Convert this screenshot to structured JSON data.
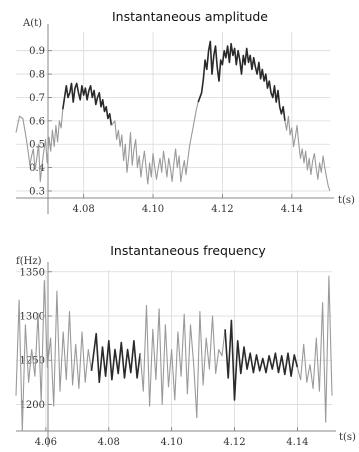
{
  "chart_data": [
    {
      "type": "line",
      "title": "Instantaneous amplitude",
      "ylabel": "A(t)",
      "xlabel": "t(s)",
      "xlim": [
        4.0605,
        4.151
      ],
      "ylim": [
        0.27,
        0.98
      ],
      "x_ticks": [
        4.08,
        4.1,
        4.12,
        4.14
      ],
      "x_tick_labels": [
        "4.08",
        "4.10",
        "4.12",
        "4.14"
      ],
      "y_ticks": [
        0.3,
        0.4,
        0.5,
        0.6,
        0.7,
        0.8,
        0.9
      ],
      "y_tick_labels": [
        "0.3",
        "0.4",
        "0.5",
        "0.6",
        "0.7",
        "0.8",
        "0.9"
      ],
      "grid": true,
      "series": [
        {
          "style": "light",
          "x": [
            4.0605,
            4.0615,
            4.0625,
            4.0635,
            4.064,
            4.0645,
            4.065,
            4.0655,
            4.066,
            4.0665,
            4.067,
            4.0675,
            4.068,
            4.0685,
            4.069,
            4.0695,
            4.07,
            4.0705,
            4.071,
            4.0715,
            4.072,
            4.0725,
            4.073,
            4.0735,
            4.074
          ],
          "y": [
            0.55,
            0.62,
            0.61,
            0.52,
            0.47,
            0.41,
            0.45,
            0.48,
            0.39,
            0.44,
            0.5,
            0.34,
            0.41,
            0.47,
            0.52,
            0.42,
            0.53,
            0.47,
            0.56,
            0.49,
            0.58,
            0.51,
            0.6,
            0.57,
            0.65
          ]
        },
        {
          "style": "dark",
          "x": [
            4.074,
            4.075,
            4.0755,
            4.076,
            4.0765,
            4.077,
            4.0775,
            4.078,
            4.0785,
            4.079,
            4.0795,
            4.08,
            4.0805,
            4.081,
            4.0815,
            4.082,
            4.0825,
            4.083,
            4.0835,
            4.084,
            4.0845,
            4.085,
            4.0855,
            4.086,
            4.0865,
            4.087,
            4.0875,
            4.088
          ],
          "y": [
            0.65,
            0.75,
            0.7,
            0.72,
            0.76,
            0.68,
            0.74,
            0.76,
            0.72,
            0.69,
            0.75,
            0.71,
            0.74,
            0.69,
            0.73,
            0.75,
            0.7,
            0.73,
            0.67,
            0.7,
            0.72,
            0.66,
            0.69,
            0.64,
            0.66,
            0.61,
            0.63,
            0.58
          ]
        },
        {
          "style": "light",
          "x": [
            4.088,
            4.089,
            4.0895,
            4.09,
            4.0905,
            4.091,
            4.0915,
            4.092,
            4.0925,
            4.093,
            4.0935,
            4.094,
            4.0945,
            4.095,
            4.0955,
            4.096,
            4.0965,
            4.097,
            4.0975,
            4.098,
            4.0985,
            4.099,
            4.0995,
            4.1,
            4.1005,
            4.101,
            4.1015,
            4.102,
            4.1025,
            4.103,
            4.1035,
            4.104,
            4.1045,
            4.105,
            4.1055,
            4.106,
            4.1065,
            4.107,
            4.1075,
            4.108,
            4.1085,
            4.109,
            4.1095,
            4.11,
            4.1105,
            4.111,
            4.1115,
            4.112,
            4.1125,
            4.113
          ],
          "y": [
            0.58,
            0.6,
            0.52,
            0.56,
            0.49,
            0.54,
            0.43,
            0.5,
            0.38,
            0.45,
            0.55,
            0.41,
            0.48,
            0.52,
            0.4,
            0.45,
            0.36,
            0.42,
            0.47,
            0.4,
            0.33,
            0.42,
            0.36,
            0.46,
            0.4,
            0.35,
            0.4,
            0.44,
            0.38,
            0.47,
            0.42,
            0.36,
            0.44,
            0.4,
            0.34,
            0.42,
            0.48,
            0.4,
            0.45,
            0.34,
            0.39,
            0.43,
            0.37,
            0.43,
            0.49,
            0.53,
            0.57,
            0.61,
            0.65,
            0.68
          ]
        },
        {
          "style": "dark",
          "x": [
            4.113,
            4.114,
            4.1145,
            4.115,
            4.1155,
            4.116,
            4.1165,
            4.117,
            4.1175,
            4.118,
            4.1185,
            4.119,
            4.1195,
            4.12,
            4.1205,
            4.121,
            4.1215,
            4.122,
            4.1225,
            4.123,
            4.1235,
            4.124,
            4.1245,
            4.125,
            4.1255,
            4.126,
            4.1265,
            4.127,
            4.1275,
            4.128,
            4.1285,
            4.129,
            4.1295,
            4.13,
            4.1305,
            4.131,
            4.1315,
            4.132,
            4.1325,
            4.133,
            4.1335,
            4.134,
            4.1345,
            4.135,
            4.1355,
            4.136,
            4.1365,
            4.137,
            4.1375,
            4.138
          ],
          "y": [
            0.68,
            0.72,
            0.78,
            0.86,
            0.82,
            0.9,
            0.94,
            0.8,
            0.88,
            0.92,
            0.83,
            0.77,
            0.86,
            0.84,
            0.9,
            0.87,
            0.92,
            0.85,
            0.93,
            0.88,
            0.91,
            0.84,
            0.9,
            0.86,
            0.8,
            0.88,
            0.84,
            0.91,
            0.85,
            0.88,
            0.82,
            0.87,
            0.83,
            0.8,
            0.85,
            0.78,
            0.82,
            0.77,
            0.8,
            0.74,
            0.77,
            0.72,
            0.7,
            0.75,
            0.68,
            0.73,
            0.66,
            0.63,
            0.66,
            0.6
          ]
        },
        {
          "style": "light",
          "x": [
            4.138,
            4.1385,
            4.139,
            4.1395,
            4.14,
            4.1405,
            4.141,
            4.1415,
            4.142,
            4.1425,
            4.143,
            4.1435,
            4.144,
            4.1445,
            4.145,
            4.1455,
            4.146,
            4.1465,
            4.147,
            4.1475,
            4.148,
            4.1485,
            4.149,
            4.1495,
            4.15,
            4.1505,
            4.151
          ],
          "y": [
            0.6,
            0.56,
            0.62,
            0.54,
            0.57,
            0.49,
            0.53,
            0.58,
            0.5,
            0.44,
            0.48,
            0.42,
            0.47,
            0.39,
            0.44,
            0.37,
            0.43,
            0.46,
            0.4,
            0.35,
            0.42,
            0.38,
            0.45,
            0.4,
            0.36,
            0.32,
            0.3
          ]
        }
      ]
    },
    {
      "type": "line",
      "title": "Instantaneous frequency",
      "ylabel": "f(Hz)",
      "xlabel": "t(s)",
      "xlim": [
        4.0505,
        4.151
      ],
      "ylim": [
        1170,
        1352
      ],
      "x_ticks": [
        4.06,
        4.08,
        4.1,
        4.12,
        4.14
      ],
      "x_tick_labels": [
        "4.06",
        "4.08",
        "4.10",
        "4.12",
        "4.14"
      ],
      "y_ticks": [
        1200,
        1250,
        1300,
        1350
      ],
      "y_tick_labels": [
        "1200",
        "1250",
        "1300",
        "1350"
      ],
      "grid": true,
      "series": [
        {
          "style": "light",
          "x": [
            4.0505,
            4.0515,
            4.0525,
            4.0535,
            4.0545,
            4.0555,
            4.0565,
            4.0575,
            4.0585,
            4.0595,
            4.0605,
            4.0615,
            4.0625,
            4.0635,
            4.0645,
            4.0655,
            4.0665,
            4.0675,
            4.0685,
            4.0695,
            4.0705,
            4.0715,
            4.0725,
            4.0735,
            4.0745
          ],
          "y": [
            1210,
            1318,
            1170,
            1290,
            1225,
            1262,
            1232,
            1303,
            1203,
            1340,
            1242,
            1275,
            1198,
            1328,
            1215,
            1282,
            1228,
            1305,
            1222,
            1268,
            1218,
            1282,
            1225,
            1262,
            1238
          ]
        },
        {
          "style": "dark",
          "x": [
            4.0745,
            4.076,
            4.077,
            4.078,
            4.079,
            4.08,
            4.081,
            4.082,
            4.083,
            4.084,
            4.085,
            4.086,
            4.087,
            4.088,
            4.089,
            4.09
          ],
          "y": [
            1238,
            1280,
            1225,
            1265,
            1232,
            1272,
            1228,
            1262,
            1235,
            1270,
            1230,
            1262,
            1236,
            1272,
            1230,
            1258
          ]
        },
        {
          "style": "light",
          "x": [
            4.09,
            4.091,
            4.092,
            4.093,
            4.094,
            4.095,
            4.096,
            4.097,
            4.098,
            4.099,
            4.1,
            4.101,
            4.102,
            4.103,
            4.104,
            4.105,
            4.106,
            4.107,
            4.108,
            4.109,
            4.11,
            4.111,
            4.112,
            4.113,
            4.114,
            4.115,
            4.116,
            4.117
          ],
          "y": [
            1258,
            1215,
            1312,
            1198,
            1285,
            1228,
            1308,
            1200,
            1290,
            1220,
            1262,
            1205,
            1282,
            1232,
            1302,
            1212,
            1290,
            1245,
            1185,
            1305,
            1222,
            1275,
            1240,
            1300,
            1235,
            1262,
            1255,
            1285
          ]
        },
        {
          "style": "dark",
          "x": [
            4.117,
            4.118,
            4.119,
            4.12,
            4.121,
            4.122,
            4.123,
            4.124,
            4.125,
            4.126,
            4.127,
            4.128,
            4.129,
            4.13,
            4.131,
            4.132,
            4.133,
            4.134,
            4.135,
            4.136,
            4.137,
            4.138,
            4.139,
            4.14
          ],
          "y": [
            1285,
            1230,
            1295,
            1205,
            1272,
            1235,
            1265,
            1240,
            1258,
            1236,
            1256,
            1238,
            1252,
            1236,
            1255,
            1240,
            1258,
            1236,
            1255,
            1234,
            1258,
            1232,
            1256,
            1242
          ]
        },
        {
          "style": "light",
          "x": [
            4.14,
            4.141,
            4.142,
            4.143,
            4.144,
            4.145,
            4.146,
            4.147,
            4.148,
            4.149,
            4.15,
            4.151
          ],
          "y": [
            1242,
            1228,
            1268,
            1225,
            1245,
            1218,
            1275,
            1215,
            1315,
            1180,
            1345,
            1210
          ]
        }
      ]
    }
  ]
}
